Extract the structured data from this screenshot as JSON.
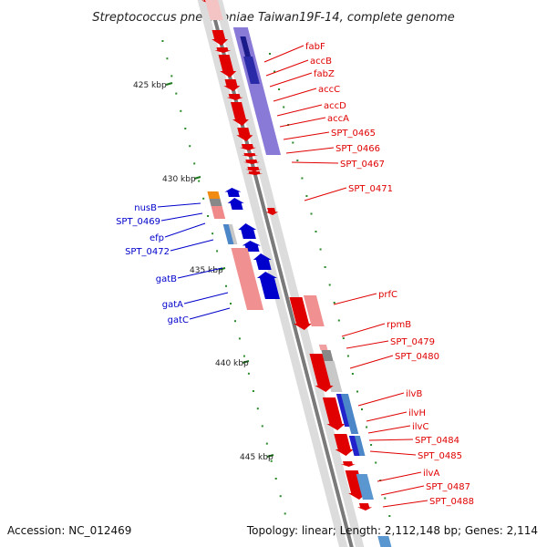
{
  "title": "Streptococcus pneumoniae Taiwan19F-14, complete genome",
  "footer": {
    "accession": "Accession: NC_012469",
    "topology": "Topology: linear; Length: 2,112,148 bp; Genes: 2,114"
  },
  "scale_labels": [
    "425 kbp",
    "430 kbp",
    "435 kbp",
    "440 kbp",
    "445 kbp"
  ],
  "forward_strand_color": "#e00000",
  "reverse_strand_color": "#0000cc",
  "right_labels": [
    "fabF",
    "accB",
    "fabZ",
    "accC",
    "accD",
    "accA",
    "SPT_0465",
    "SPT_0466",
    "SPT_0467",
    "SPT_0471",
    "prfC",
    "rpmB",
    "SPT_0479",
    "SPT_0480",
    "ilvB",
    "ilvH",
    "ilvC",
    "SPT_0484",
    "SPT_0485",
    "ilvA",
    "SPT_0487",
    "SPT_0488"
  ],
  "left_labels": [
    "nusB",
    "SPT_0469",
    "efp",
    "SPT_0472",
    "gatB",
    "gatA",
    "gatC"
  ]
}
